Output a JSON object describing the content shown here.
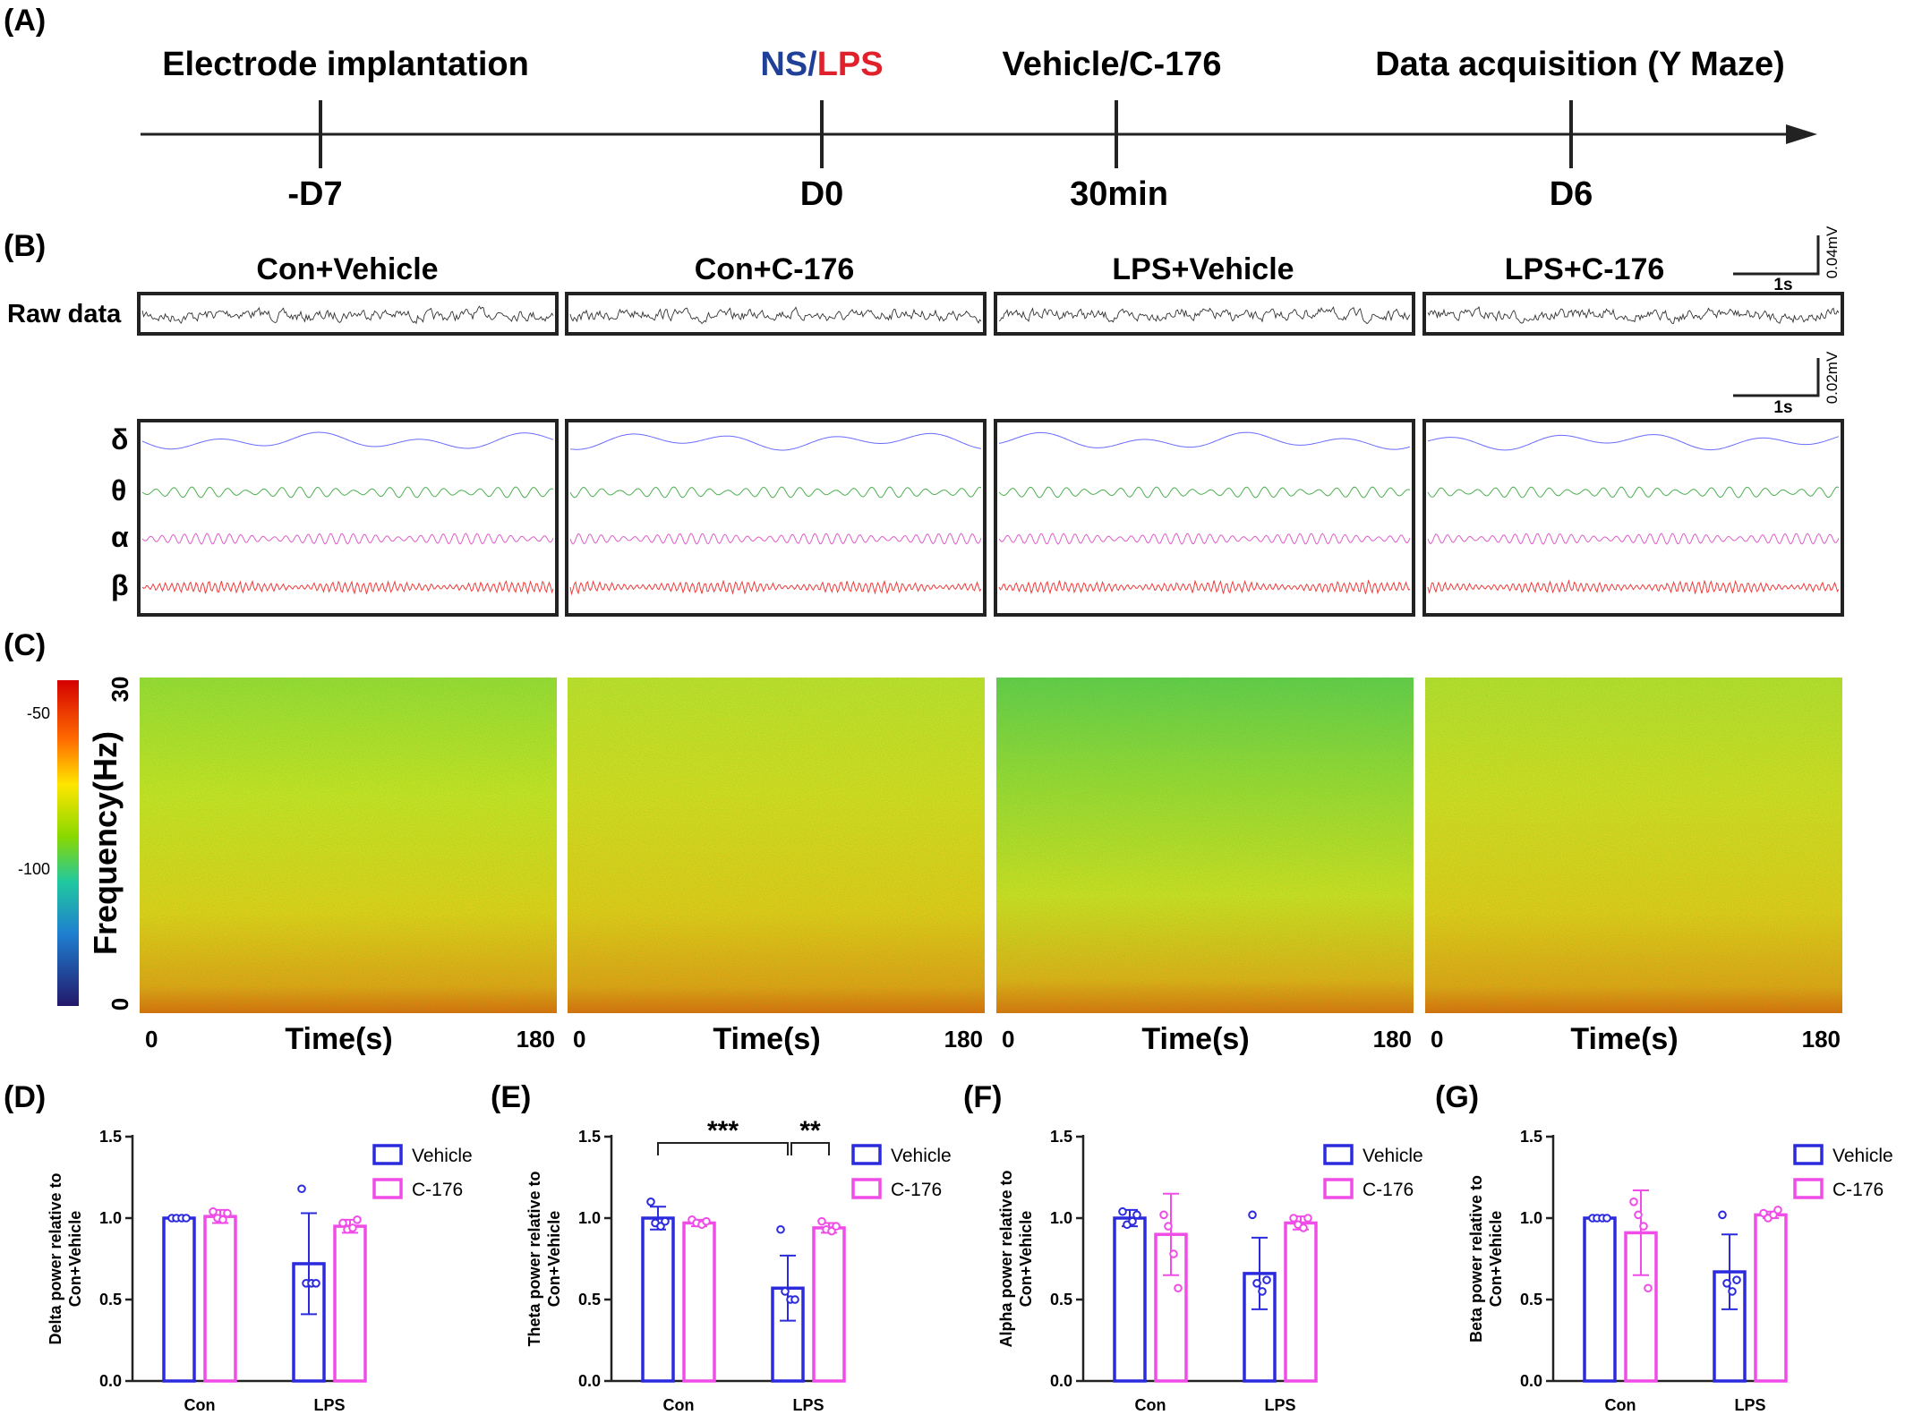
{
  "panels": {
    "A": "(A)",
    "B": "(B)",
    "C": "(C)",
    "D": "(D)",
    "E": "(E)",
    "F": "(F)",
    "G": "(G)"
  },
  "timeline": {
    "events": [
      {
        "top": "Electrode implantation",
        "bottom": "-D7"
      },
      {
        "top_parts": [
          {
            "text": "NS",
            "color": "#1f3f99"
          },
          {
            "text": "/",
            "color": "#1f3f99"
          },
          {
            "text": "LPS",
            "color": "#e0202a"
          }
        ],
        "bottom": "D0"
      },
      {
        "top": "Vehicle/C-176",
        "bottom": "30min"
      },
      {
        "top": "Data acquisition (Y Maze)",
        "bottom": "D6"
      }
    ]
  },
  "eeg": {
    "groups": [
      "Con+Vehicle",
      "Con+C-176",
      "LPS+Vehicle",
      "LPS+C-176"
    ],
    "raw_label": "Raw data",
    "scale_raw": {
      "time": "1s",
      "amp": "0.04mV"
    },
    "scale_bands": {
      "time": "1s",
      "amp": "0.02mV"
    },
    "bands": [
      {
        "symbol": "δ",
        "color": "#6b6bff"
      },
      {
        "symbol": "θ",
        "color": "#4caf50"
      },
      {
        "symbol": "α",
        "color": "#e05cc8"
      },
      {
        "symbol": "β",
        "color": "#ef3b3b"
      }
    ]
  },
  "spectrogram": {
    "ylabel": "Frequency(Hz)",
    "xlabel": "Time(s)",
    "y_top": "30",
    "y_bottom": "0",
    "x_left": "0",
    "x_right": "180",
    "colorbar_ticks": [
      "-50",
      "-100"
    ]
  },
  "colors": {
    "vehicle": "#2b2bdd",
    "c176": "#f04ce8"
  },
  "chart_data": [
    {
      "panel": "D",
      "type": "bar",
      "ylabel": "Delta power relative to Con+Vehicle",
      "categories": [
        "Con",
        "LPS"
      ],
      "ylim": [
        0,
        1.5
      ],
      "yticks": [
        "0.0",
        "0.5",
        "1.0",
        "1.5"
      ],
      "series": [
        {
          "name": "Vehicle",
          "values": [
            1.0,
            0.72
          ],
          "err": [
            0.01,
            0.31
          ],
          "points": [
            [
              1.0,
              1.0,
              1.0,
              1.0
            ],
            [
              1.18,
              0.6,
              0.6,
              0.6
            ]
          ]
        },
        {
          "name": "C-176",
          "values": [
            1.01,
            0.95
          ],
          "err": [
            0.04,
            0.04
          ],
          "points": [
            [
              1.04,
              1.0,
              0.99,
              1.03
            ],
            [
              0.97,
              0.93,
              0.94,
              0.99
            ]
          ]
        }
      ],
      "significance": []
    },
    {
      "panel": "E",
      "type": "bar",
      "ylabel": "Theta power relative to Con+Vehicle",
      "categories": [
        "Con",
        "LPS"
      ],
      "ylim": [
        0,
        1.5
      ],
      "yticks": [
        "0.0",
        "0.5",
        "1.0",
        "1.5"
      ],
      "series": [
        {
          "name": "Vehicle",
          "values": [
            1.0,
            0.57
          ],
          "err": [
            0.07,
            0.2
          ],
          "points": [
            [
              1.1,
              0.97,
              0.95,
              0.98
            ],
            [
              0.93,
              0.55,
              0.5,
              0.5
            ]
          ]
        },
        {
          "name": "C-176",
          "values": [
            0.97,
            0.94
          ],
          "err": [
            0.02,
            0.03
          ],
          "points": [
            [
              0.99,
              0.97,
              0.96,
              0.98
            ],
            [
              0.98,
              0.93,
              0.92,
              0.95
            ]
          ]
        }
      ],
      "significance": [
        "***",
        "**"
      ]
    },
    {
      "panel": "F",
      "type": "bar",
      "ylabel": "Alpha power relative to Con+Vehicle",
      "categories": [
        "Con",
        "LPS"
      ],
      "ylim": [
        0,
        1.5
      ],
      "yticks": [
        "0.0",
        "0.5",
        "1.0",
        "1.5"
      ],
      "series": [
        {
          "name": "Vehicle",
          "values": [
            1.0,
            0.66
          ],
          "err": [
            0.05,
            0.22
          ],
          "points": [
            [
              1.04,
              0.96,
              0.98,
              1.02
            ],
            [
              1.02,
              0.6,
              0.55,
              0.62
            ]
          ]
        },
        {
          "name": "C-176",
          "values": [
            0.9,
            0.97
          ],
          "err": [
            0.25,
            0.04
          ],
          "points": [
            [
              1.02,
              0.95,
              0.78,
              0.57
            ],
            [
              1.0,
              0.96,
              0.94,
              1.0
            ]
          ]
        }
      ],
      "significance": []
    },
    {
      "panel": "G",
      "type": "bar",
      "ylabel": "Beta power relative to Con+Vehicle",
      "categories": [
        "Con",
        "LPS"
      ],
      "ylim": [
        0,
        1.5
      ],
      "yticks": [
        "0.0",
        "0.5",
        "1.0",
        "1.5"
      ],
      "series": [
        {
          "name": "Vehicle",
          "values": [
            1.0,
            0.67
          ],
          "err": [
            0.01,
            0.23
          ],
          "points": [
            [
              1.0,
              1.0,
              1.0,
              1.0
            ],
            [
              1.02,
              0.6,
              0.55,
              0.62
            ]
          ]
        },
        {
          "name": "C-176",
          "values": [
            0.91,
            1.02
          ],
          "err": [
            0.26,
            0.02
          ],
          "points": [
            [
              1.1,
              1.02,
              0.95,
              0.57
            ],
            [
              1.03,
              1.0,
              1.02,
              1.05
            ]
          ]
        }
      ],
      "significance": []
    }
  ]
}
